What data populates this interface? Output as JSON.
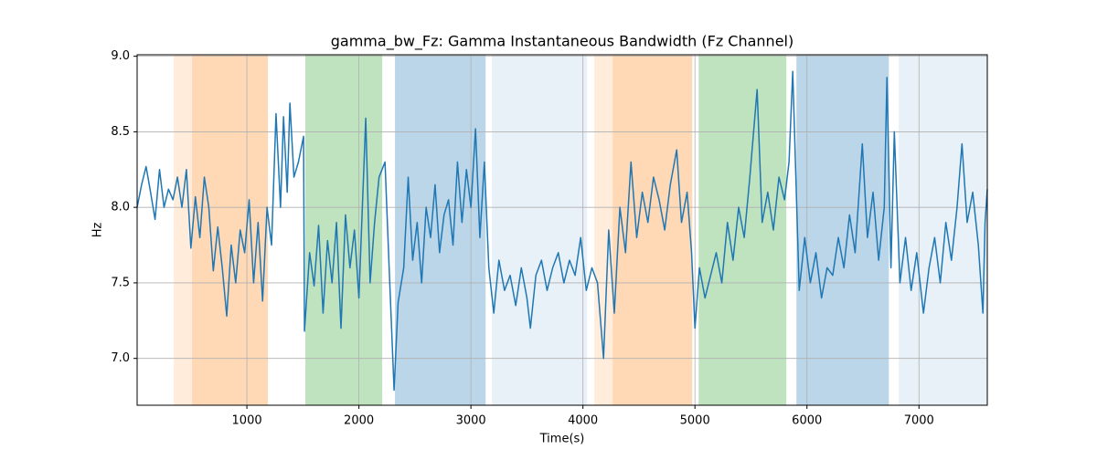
{
  "chart_data": {
    "type": "line",
    "title": "gamma_bw_Fz: Gamma Instantaneous Bandwidth (Fz Channel)",
    "xlabel": "Time(s)",
    "ylabel": "Hz",
    "xlim": [
      20,
      7610
    ],
    "ylim": [
      6.69,
      9.01
    ],
    "xticks": [
      1000,
      2000,
      3000,
      4000,
      5000,
      6000,
      7000
    ],
    "yticks": [
      {
        "value": 7.0,
        "label": "7.0"
      },
      {
        "value": 7.5,
        "label": "7.5"
      },
      {
        "value": 8.0,
        "label": "8.0"
      },
      {
        "value": 8.5,
        "label": "8.5"
      },
      {
        "value": 9.0,
        "label": "9.0"
      }
    ],
    "grid": true,
    "spans": [
      {
        "x0": 347,
        "x1": 510,
        "color": "#ff7f0e",
        "alpha": 0.15
      },
      {
        "x0": 510,
        "x1": 1188,
        "color": "#ff7f0e",
        "alpha": 0.3
      },
      {
        "x0": 1522,
        "x1": 2208,
        "color": "#2ca02c",
        "alpha": 0.3
      },
      {
        "x0": 2322,
        "x1": 3131,
        "color": "#1f77b4",
        "alpha": 0.3
      },
      {
        "x0": 3188,
        "x1": 4037,
        "color": "#1f77b4",
        "alpha": 0.1
      },
      {
        "x0": 4102,
        "x1": 4265,
        "color": "#ff7f0e",
        "alpha": 0.15
      },
      {
        "x0": 4265,
        "x1": 4976,
        "color": "#ff7f0e",
        "alpha": 0.3
      },
      {
        "x0": 5033,
        "x1": 5816,
        "color": "#2ca02c",
        "alpha": 0.3
      },
      {
        "x0": 5906,
        "x1": 6731,
        "color": "#1f77b4",
        "alpha": 0.3
      },
      {
        "x0": 6820,
        "x1": 7612,
        "color": "#1f77b4",
        "alpha": 0.1
      }
    ],
    "series": [
      {
        "name": "gamma_bw_Fz",
        "color": "#1f77b4",
        "x": [
          20,
          60,
          100,
          140,
          180,
          220,
          260,
          300,
          340,
          380,
          420,
          460,
          500,
          540,
          580,
          620,
          660,
          700,
          740,
          780,
          820,
          860,
          900,
          940,
          980,
          1020,
          1060,
          1100,
          1140,
          1180,
          1220,
          1260,
          1300,
          1327,
          1360,
          1384,
          1420,
          1460,
          1506,
          1514,
          1560,
          1600,
          1640,
          1680,
          1720,
          1760,
          1800,
          1840,
          1880,
          1920,
          1960,
          2000,
          2061,
          2100,
          2140,
          2180,
          2233,
          2270,
          2314,
          2350,
          2400,
          2440,
          2480,
          2520,
          2560,
          2600,
          2640,
          2680,
          2720,
          2760,
          2800,
          2840,
          2880,
          2920,
          2960,
          3000,
          3041,
          3080,
          3120,
          3160,
          3204,
          3250,
          3300,
          3350,
          3400,
          3450,
          3500,
          3531,
          3580,
          3630,
          3680,
          3730,
          3780,
          3830,
          3880,
          3930,
          3980,
          4030,
          4080,
          4130,
          4184,
          4230,
          4280,
          4330,
          4380,
          4429,
          4480,
          4530,
          4580,
          4630,
          4680,
          4730,
          4780,
          4837,
          4880,
          4930,
          4970,
          5000,
          5040,
          5090,
          5140,
          5190,
          5240,
          5290,
          5340,
          5390,
          5440,
          5490,
          5555,
          5600,
          5650,
          5700,
          5750,
          5800,
          5840,
          5873,
          5931,
          5980,
          6030,
          6080,
          6130,
          6180,
          6230,
          6280,
          6330,
          6380,
          6430,
          6494,
          6540,
          6590,
          6640,
          6690,
          6714,
          6750,
          6780,
          6830,
          6880,
          6930,
          6980,
          7040,
          7090,
          7140,
          7190,
          7240,
          7290,
          7340,
          7384,
          7430,
          7480,
          7530,
          7571,
          7590,
          7610
        ],
        "values": [
          8.0,
          8.15,
          8.27,
          8.1,
          7.92,
          8.25,
          8.0,
          8.12,
          8.05,
          8.2,
          8.0,
          8.25,
          7.73,
          8.07,
          7.8,
          8.2,
          8.0,
          7.58,
          7.87,
          7.6,
          7.28,
          7.75,
          7.5,
          7.85,
          7.7,
          8.05,
          7.5,
          7.9,
          7.38,
          8.0,
          7.75,
          8.62,
          8.0,
          8.6,
          8.1,
          8.69,
          8.2,
          8.3,
          8.47,
          7.18,
          7.7,
          7.48,
          7.88,
          7.3,
          7.78,
          7.5,
          7.9,
          7.2,
          7.95,
          7.6,
          7.85,
          7.4,
          8.59,
          7.5,
          7.9,
          8.2,
          8.3,
          7.6,
          6.79,
          7.37,
          7.6,
          8.2,
          7.65,
          7.9,
          7.5,
          8.0,
          7.8,
          8.15,
          7.7,
          7.95,
          8.05,
          7.75,
          8.3,
          7.9,
          8.25,
          8.0,
          8.52,
          7.8,
          8.3,
          7.6,
          7.3,
          7.65,
          7.45,
          7.55,
          7.35,
          7.6,
          7.4,
          7.2,
          7.55,
          7.65,
          7.45,
          7.6,
          7.7,
          7.5,
          7.65,
          7.55,
          7.8,
          7.45,
          7.6,
          7.5,
          7.0,
          7.85,
          7.3,
          8.0,
          7.7,
          8.3,
          7.8,
          8.1,
          7.9,
          8.2,
          8.05,
          7.85,
          8.15,
          8.38,
          7.9,
          8.1,
          7.7,
          7.2,
          7.6,
          7.4,
          7.55,
          7.7,
          7.5,
          7.9,
          7.65,
          8.0,
          7.8,
          8.2,
          8.78,
          7.9,
          8.1,
          7.85,
          8.2,
          8.05,
          8.3,
          8.9,
          7.45,
          7.8,
          7.5,
          7.7,
          7.4,
          7.6,
          7.55,
          7.8,
          7.6,
          7.95,
          7.7,
          8.42,
          7.8,
          8.1,
          7.65,
          8.0,
          8.86,
          7.6,
          8.5,
          7.5,
          7.8,
          7.45,
          7.7,
          7.3,
          7.6,
          7.8,
          7.5,
          7.9,
          7.65,
          8.0,
          8.42,
          7.9,
          8.1,
          7.75,
          7.3,
          7.9,
          8.12
        ]
      }
    ]
  }
}
